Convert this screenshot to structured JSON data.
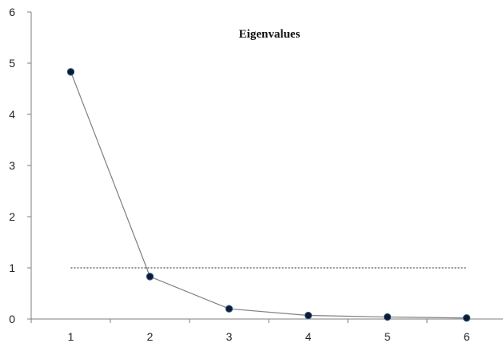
{
  "chart_data": {
    "type": "line",
    "title": "Eigenvalues",
    "xlabel": "",
    "ylabel": "",
    "x": [
      1,
      2,
      3,
      4,
      5,
      6
    ],
    "series": [
      {
        "values": [
          4.83,
          0.83,
          0.2,
          0.07,
          0.04,
          0.02
        ],
        "color": "#7f7f7f",
        "marker_color": "#0f1b2e"
      }
    ],
    "reference_line": {
      "y": 1,
      "x_range": [
        1,
        6
      ],
      "style": "dotted",
      "color": "#222222"
    },
    "xlim": [
      0.5,
      6.5
    ],
    "ylim": [
      0,
      6
    ],
    "x_ticks": [
      1,
      2,
      3,
      4,
      5,
      6
    ],
    "y_ticks": [
      0,
      1,
      2,
      3,
      4,
      5,
      6
    ],
    "grid": false,
    "legend": "none"
  }
}
